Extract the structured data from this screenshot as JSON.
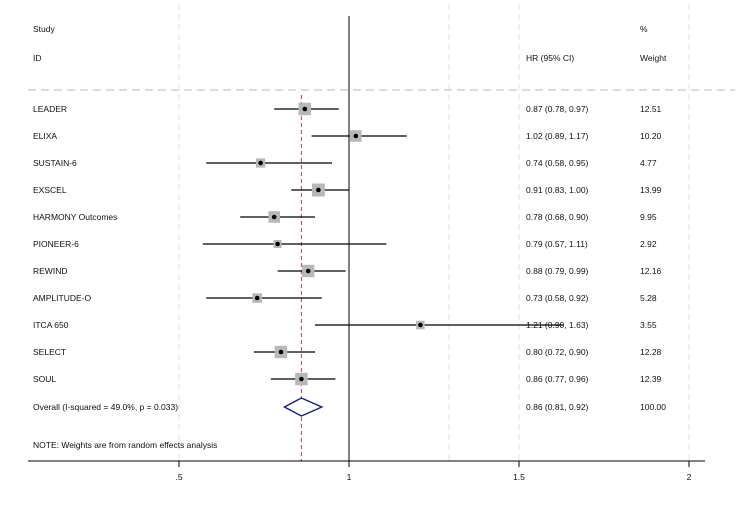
{
  "chart_data": {
    "type": "forest",
    "headers": {
      "study_line1": "Study",
      "study_line2": "ID",
      "hr_label": "HR (95% CI)",
      "pct_line1": "%",
      "pct_line2": "Weight"
    },
    "x_axis": {
      "ticks": [
        0.5,
        1,
        1.5,
        2
      ],
      "tick_labels": [
        ".5",
        "1",
        "1.5",
        "2"
      ],
      "range": [
        0.03,
        2.6
      ],
      "reference_line": 1
    },
    "studies": [
      {
        "name": "LEADER",
        "hr": 0.87,
        "lower": 0.78,
        "upper": 0.97,
        "ci_text": "0.87 (0.78, 0.97)",
        "weight": 12.51,
        "weight_text": "12.51"
      },
      {
        "name": "ELIXA",
        "hr": 1.02,
        "lower": 0.89,
        "upper": 1.17,
        "ci_text": "1.02 (0.89, 1.17)",
        "weight": 10.2,
        "weight_text": "10.20"
      },
      {
        "name": "SUSTAIN-6",
        "hr": 0.74,
        "lower": 0.58,
        "upper": 0.95,
        "ci_text": "0.74 (0.58, 0.95)",
        "weight": 4.77,
        "weight_text": "4.77"
      },
      {
        "name": "EXSCEL",
        "hr": 0.91,
        "lower": 0.83,
        "upper": 1.0,
        "ci_text": "0.91 (0.83, 1.00)",
        "weight": 13.99,
        "weight_text": "13.99"
      },
      {
        "name": "HARMONY Outcomes",
        "hr": 0.78,
        "lower": 0.68,
        "upper": 0.9,
        "ci_text": "0.78 (0.68, 0.90)",
        "weight": 9.95,
        "weight_text": "9.95"
      },
      {
        "name": "PIONEER-6",
        "hr": 0.79,
        "lower": 0.57,
        "upper": 1.11,
        "ci_text": "0.79 (0.57, 1.11)",
        "weight": 2.92,
        "weight_text": "2.92"
      },
      {
        "name": "REWIND",
        "hr": 0.88,
        "lower": 0.79,
        "upper": 0.99,
        "ci_text": "0.88 (0.79, 0.99)",
        "weight": 12.16,
        "weight_text": "12.16"
      },
      {
        "name": "AMPLITUDE-O",
        "hr": 0.73,
        "lower": 0.58,
        "upper": 0.92,
        "ci_text": "0.73 (0.58, 0.92)",
        "weight": 5.28,
        "weight_text": "5.28"
      },
      {
        "name": "ITCA 650",
        "hr": 1.21,
        "lower": 0.9,
        "upper": 1.63,
        "ci_text": "1.21 (0.90, 1.63)",
        "weight": 3.55,
        "weight_text": "3.55"
      },
      {
        "name": "SELECT",
        "hr": 0.8,
        "lower": 0.72,
        "upper": 0.9,
        "ci_text": "0.80 (0.72, 0.90)",
        "weight": 12.28,
        "weight_text": "12.28"
      },
      {
        "name": "SOUL",
        "hr": 0.86,
        "lower": 0.77,
        "upper": 0.96,
        "ci_text": "0.86 (0.77, 0.96)",
        "weight": 12.39,
        "weight_text": "12.39"
      }
    ],
    "overall": {
      "label": "Overall  (I-squared = 49.0%, p = 0.033)",
      "hr": 0.86,
      "lower": 0.81,
      "upper": 0.92,
      "ci_text": "0.86 (0.81, 0.92)",
      "weight_text": "100.00"
    },
    "note": "NOTE: Weights are from random effects analysis",
    "colors": {
      "marker_box": "#b8b8b8",
      "point": "#000000",
      "ci_line": "#000000",
      "overall_diamond": "#1c1c7a",
      "overall_line": "#b04848",
      "grid": "#e0e0e0",
      "separator": "#bbbbbb"
    }
  }
}
